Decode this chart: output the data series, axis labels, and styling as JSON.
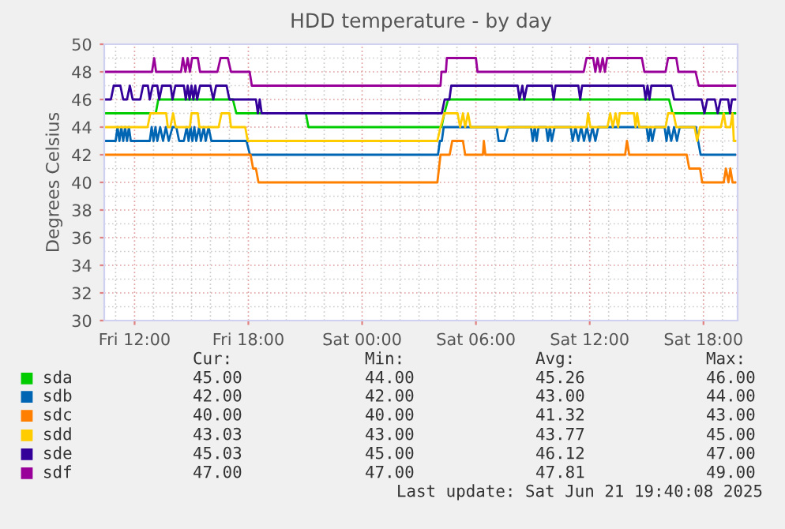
{
  "chart_data": {
    "type": "line",
    "title": "HDD temperature - by day",
    "ylabel": "Degrees Celsius",
    "xlim": [
      "2025-06-20T10:24",
      "2025-06-21T19:48"
    ],
    "xticks": [
      {
        "value": "2025-06-20T12:00",
        "label": "Fri 12:00"
      },
      {
        "value": "2025-06-20T18:00",
        "label": "Fri 18:00"
      },
      {
        "value": "2025-06-21T00:00",
        "label": "Sat 00:00"
      },
      {
        "value": "2025-06-21T06:00",
        "label": "Sat 06:00"
      },
      {
        "value": "2025-06-21T12:00",
        "label": "Sat 12:00"
      },
      {
        "value": "2025-06-21T18:00",
        "label": "Sat 18:00"
      }
    ],
    "ylim": [
      30,
      50
    ],
    "yticks": [
      30,
      32,
      34,
      36,
      38,
      40,
      42,
      44,
      46,
      48,
      50
    ],
    "grid": true,
    "legend": "bottom",
    "marker": "none",
    "line_style": "solid",
    "series": [
      {
        "name": "sda",
        "color": "#00cc00",
        "x": [
          "2025-06-20T10:28",
          "2025-06-20T13:07",
          "2025-06-20T13:15",
          "2025-06-20T17:11",
          "2025-06-20T17:22",
          "2025-06-20T21:02",
          "2025-06-20T21:10",
          "2025-06-21T04:11",
          "2025-06-21T04:20",
          "2025-06-21T04:32",
          "2025-06-21T16:11",
          "2025-06-21T16:22",
          "2025-06-21T19:40"
        ],
        "values": [
          45,
          45,
          46,
          46,
          45,
          45,
          44,
          44,
          45,
          46,
          46,
          45,
          45
        ]
      },
      {
        "name": "sdb",
        "color": "#0066b3",
        "x": [
          "2025-06-20T10:28",
          "2025-06-20T11:00",
          "2025-06-20T11:06",
          "2025-06-20T11:12",
          "2025-06-20T11:18",
          "2025-06-20T11:24",
          "2025-06-20T11:30",
          "2025-06-20T11:36",
          "2025-06-20T11:42",
          "2025-06-20T11:48",
          "2025-06-20T12:48",
          "2025-06-20T12:54",
          "2025-06-20T13:00",
          "2025-06-20T13:06",
          "2025-06-20T13:12",
          "2025-06-20T13:21",
          "2025-06-20T13:30",
          "2025-06-20T13:39",
          "2025-06-20T13:48",
          "2025-06-20T14:00",
          "2025-06-20T14:12",
          "2025-06-20T14:21",
          "2025-06-20T14:36",
          "2025-06-20T14:45",
          "2025-06-20T14:51",
          "2025-06-20T14:57",
          "2025-06-20T15:03",
          "2025-06-20T15:09",
          "2025-06-20T15:15",
          "2025-06-20T15:24",
          "2025-06-20T15:30",
          "2025-06-20T15:39",
          "2025-06-20T15:45",
          "2025-06-20T15:54",
          "2025-06-20T16:03",
          "2025-06-20T17:54",
          "2025-06-20T18:05",
          "2025-06-21T04:00",
          "2025-06-21T04:06",
          "2025-06-21T04:12",
          "2025-06-21T04:18",
          "2025-06-21T07:06",
          "2025-06-21T07:12",
          "2025-06-21T07:30",
          "2025-06-21T07:42",
          "2025-06-21T08:54",
          "2025-06-21T09:00",
          "2025-06-21T09:06",
          "2025-06-21T09:12",
          "2025-06-21T09:18",
          "2025-06-21T09:42",
          "2025-06-21T09:48",
          "2025-06-21T09:54",
          "2025-06-21T10:00",
          "2025-06-21T10:09",
          "2025-06-21T11:00",
          "2025-06-21T11:06",
          "2025-06-21T11:15",
          "2025-06-21T11:24",
          "2025-06-21T11:33",
          "2025-06-21T11:42",
          "2025-06-21T11:51",
          "2025-06-21T12:00",
          "2025-06-21T12:09",
          "2025-06-21T12:18",
          "2025-06-21T12:27",
          "2025-06-21T15:00",
          "2025-06-21T15:06",
          "2025-06-21T15:12",
          "2025-06-21T15:18",
          "2025-06-21T15:27",
          "2025-06-21T15:57",
          "2025-06-21T16:03",
          "2025-06-21T16:09",
          "2025-06-21T16:18",
          "2025-06-21T16:27",
          "2025-06-21T16:36",
          "2025-06-21T16:45",
          "2025-06-21T17:36",
          "2025-06-21T17:43",
          "2025-06-21T17:51",
          "2025-06-21T19:40"
        ],
        "values": [
          43,
          43,
          44,
          43,
          44,
          43,
          44,
          43,
          44,
          43,
          43,
          44,
          43,
          44,
          43,
          44,
          43,
          44,
          43,
          44,
          44,
          43,
          43,
          44,
          43,
          44,
          43,
          44,
          43,
          44,
          43,
          44,
          43,
          44,
          43,
          43,
          42,
          42,
          43,
          43,
          44,
          44,
          43,
          43,
          44,
          44,
          43,
          44,
          43,
          44,
          44,
          43,
          44,
          43,
          44,
          44,
          43,
          44,
          43,
          44,
          43,
          44,
          43,
          44,
          43,
          44,
          44,
          43,
          44,
          43,
          44,
          44,
          43,
          44,
          43,
          44,
          43,
          44,
          44,
          43,
          42,
          42
        ]
      },
      {
        "name": "sdc",
        "color": "#ff8000",
        "x": [
          "2025-06-20T10:28",
          "2025-06-20T18:07",
          "2025-06-20T18:15",
          "2025-06-20T18:24",
          "2025-06-20T18:32",
          "2025-06-21T03:58",
          "2025-06-21T04:08",
          "2025-06-21T04:37",
          "2025-06-21T04:45",
          "2025-06-21T05:19",
          "2025-06-21T05:26",
          "2025-06-21T06:22",
          "2025-06-21T06:25",
          "2025-06-21T06:30",
          "2025-06-21T13:52",
          "2025-06-21T13:58",
          "2025-06-21T14:05",
          "2025-06-21T17:07",
          "2025-06-21T17:15",
          "2025-06-21T17:49",
          "2025-06-21T17:56",
          "2025-06-21T19:04",
          "2025-06-21T19:11",
          "2025-06-21T19:19",
          "2025-06-21T19:25",
          "2025-06-21T19:32",
          "2025-06-21T19:40"
        ],
        "values": [
          42,
          42,
          41,
          41,
          40,
          40,
          42,
          42,
          43,
          43,
          42,
          42,
          43,
          42,
          42,
          43,
          42,
          42,
          41,
          41,
          40,
          40,
          41,
          40,
          41,
          40,
          40
        ]
      },
      {
        "name": "sdd",
        "color": "#ffcc00",
        "x": [
          "2025-06-20T10:28",
          "2025-06-20T12:41",
          "2025-06-20T12:50",
          "2025-06-20T13:40",
          "2025-06-20T13:45",
          "2025-06-20T13:53",
          "2025-06-20T14:02",
          "2025-06-20T14:10",
          "2025-06-20T14:55",
          "2025-06-20T15:00",
          "2025-06-20T15:20",
          "2025-06-20T15:25",
          "2025-06-20T16:26",
          "2025-06-20T16:35",
          "2025-06-20T17:00",
          "2025-06-20T17:05",
          "2025-06-20T17:50",
          "2025-06-20T17:58",
          "2025-06-21T03:58",
          "2025-06-21T04:08",
          "2025-06-21T04:20",
          "2025-06-21T05:02",
          "2025-06-21T05:10",
          "2025-06-21T05:19",
          "2025-06-21T05:26",
          "2025-06-21T05:35",
          "2025-06-21T05:43",
          "2025-06-21T11:50",
          "2025-06-21T11:55",
          "2025-06-21T12:02",
          "2025-06-21T12:56",
          "2025-06-21T13:05",
          "2025-06-21T13:13",
          "2025-06-21T13:22",
          "2025-06-21T13:30",
          "2025-06-21T13:35",
          "2025-06-21T14:20",
          "2025-06-21T14:25",
          "2025-06-21T14:30",
          "2025-06-21T14:37",
          "2025-06-21T16:00",
          "2025-06-21T16:08",
          "2025-06-21T16:25",
          "2025-06-21T16:34",
          "2025-06-21T17:32",
          "2025-06-21T17:40",
          "2025-06-21T17:49",
          "2025-06-21T18:55",
          "2025-06-21T19:04",
          "2025-06-21T19:11",
          "2025-06-21T19:25",
          "2025-06-21T19:32",
          "2025-06-21T19:36",
          "2025-06-21T19:40"
        ],
        "values": [
          44,
          44,
          45,
          45,
          44,
          44,
          45,
          44,
          44,
          45,
          45,
          44,
          44,
          45,
          45,
          44,
          44,
          43,
          43,
          44,
          45,
          45,
          44,
          45,
          44,
          45,
          44,
          44,
          45,
          44,
          44,
          45,
          44,
          45,
          44,
          45,
          45,
          44,
          45,
          44,
          44,
          45,
          45,
          44,
          44,
          43,
          44,
          44,
          45,
          44,
          44,
          45,
          43,
          43
        ]
      },
      {
        "name": "sde",
        "color": "#330099",
        "x": [
          "2025-06-20T10:28",
          "2025-06-20T10:45",
          "2025-06-20T10:54",
          "2025-06-20T11:15",
          "2025-06-20T11:24",
          "2025-06-20T11:36",
          "2025-06-20T11:45",
          "2025-06-20T11:54",
          "2025-06-20T12:18",
          "2025-06-20T12:27",
          "2025-06-20T12:42",
          "2025-06-20T12:48",
          "2025-06-20T12:57",
          "2025-06-20T13:12",
          "2025-06-20T13:18",
          "2025-06-20T13:27",
          "2025-06-20T13:54",
          "2025-06-20T14:00",
          "2025-06-20T14:09",
          "2025-06-20T14:36",
          "2025-06-20T14:42",
          "2025-06-20T14:48",
          "2025-06-20T14:54",
          "2025-06-20T15:00",
          "2025-06-20T15:06",
          "2025-06-20T15:12",
          "2025-06-20T15:18",
          "2025-06-20T15:27",
          "2025-06-20T16:00",
          "2025-06-20T16:09",
          "2025-06-20T16:18",
          "2025-06-20T16:51",
          "2025-06-20T17:00",
          "2025-06-20T18:24",
          "2025-06-20T18:30",
          "2025-06-20T18:36",
          "2025-06-20T18:42",
          "2025-06-21T04:12",
          "2025-06-21T04:21",
          "2025-06-21T04:36",
          "2025-06-21T04:42",
          "2025-06-21T08:12",
          "2025-06-21T08:18",
          "2025-06-21T08:27",
          "2025-06-21T08:33",
          "2025-06-21T08:42",
          "2025-06-21T10:00",
          "2025-06-21T10:06",
          "2025-06-21T10:12",
          "2025-06-21T11:24",
          "2025-06-21T11:30",
          "2025-06-21T11:36",
          "2025-06-21T14:51",
          "2025-06-21T14:57",
          "2025-06-21T15:03",
          "2025-06-21T15:09",
          "2025-06-21T15:15",
          "2025-06-21T16:18",
          "2025-06-21T16:27",
          "2025-06-21T17:54",
          "2025-06-21T18:03",
          "2025-06-21T18:12",
          "2025-06-21T18:36",
          "2025-06-21T18:45",
          "2025-06-21T18:54",
          "2025-06-21T19:18",
          "2025-06-21T19:24",
          "2025-06-21T19:30",
          "2025-06-21T19:40"
        ],
        "values": [
          46,
          46,
          47,
          47,
          46,
          46,
          47,
          46,
          46,
          47,
          47,
          46,
          47,
          47,
          46,
          47,
          47,
          46,
          47,
          47,
          46,
          47,
          46,
          47,
          46,
          47,
          46,
          47,
          47,
          46,
          47,
          47,
          46,
          46,
          45,
          46,
          45,
          45,
          46,
          46,
          47,
          47,
          46,
          47,
          46,
          47,
          47,
          46,
          47,
          47,
          46,
          47,
          47,
          46,
          47,
          46,
          47,
          47,
          46,
          46,
          45,
          46,
          46,
          45,
          46,
          46,
          45,
          46,
          46
        ]
      },
      {
        "name": "sdf",
        "color": "#990099",
        "x": [
          "2025-06-20T10:28",
          "2025-06-20T12:55",
          "2025-06-20T13:02",
          "2025-06-20T13:08",
          "2025-06-20T14:27",
          "2025-06-20T14:33",
          "2025-06-20T14:41",
          "2025-06-20T14:48",
          "2025-06-20T14:55",
          "2025-06-20T15:02",
          "2025-06-20T15:20",
          "2025-06-20T15:27",
          "2025-06-20T16:22",
          "2025-06-20T16:32",
          "2025-06-20T16:55",
          "2025-06-20T17:05",
          "2025-06-20T18:04",
          "2025-06-20T18:11",
          "2025-06-21T04:08",
          "2025-06-21T04:11",
          "2025-06-21T04:25",
          "2025-06-21T04:28",
          "2025-06-21T06:00",
          "2025-06-21T06:05",
          "2025-06-21T11:41",
          "2025-06-21T11:50",
          "2025-06-21T12:11",
          "2025-06-21T12:18",
          "2025-06-21T12:25",
          "2025-06-21T12:33",
          "2025-06-21T12:41",
          "2025-06-21T12:48",
          "2025-06-21T12:55",
          "2025-06-21T14:45",
          "2025-06-21T14:53",
          "2025-06-21T16:00",
          "2025-06-21T16:08",
          "2025-06-21T16:34",
          "2025-06-21T16:41",
          "2025-06-21T17:35",
          "2025-06-21T17:45",
          "2025-06-21T19:40"
        ],
        "values": [
          48,
          48,
          49,
          48,
          48,
          49,
          48,
          49,
          48,
          49,
          49,
          48,
          48,
          49,
          49,
          48,
          48,
          47,
          47,
          48,
          48,
          49,
          49,
          48,
          48,
          49,
          49,
          48,
          49,
          48,
          49,
          48,
          49,
          49,
          48,
          48,
          49,
          49,
          48,
          48,
          47,
          47
        ]
      }
    ],
    "annotations": [
      "Cur:",
      "Min:",
      "Avg:",
      "Max:",
      "45.00",
      "44.00",
      "45.26",
      "46.00",
      "42.00",
      "42.00",
      "43.00",
      "44.00",
      "40.00",
      "40.00",
      "41.32",
      "43.00",
      "43.03",
      "43.00",
      "43.77",
      "45.00",
      "45.03",
      "45.00",
      "46.12",
      "47.00",
      "47.00",
      "47.00",
      "47.81",
      "49.00",
      "Last update: Sat Jun 21 19:40:08 2025"
    ]
  }
}
